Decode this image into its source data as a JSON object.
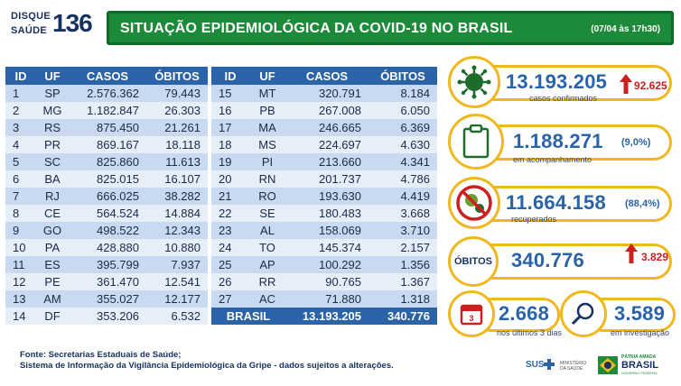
{
  "header": {
    "logo_line1": "DISQUE",
    "logo_line2": "SAÚDE",
    "logo_number": "136",
    "title": "SITUAÇÃO EPIDEMIOLÓGICA DA COVID-19 NO BRASIL",
    "date": "(07/04 às 17h30)"
  },
  "table": {
    "columns": [
      "ID",
      "UF",
      "CASOS",
      "ÓBITOS"
    ],
    "left_rows": [
      {
        "id": "1",
        "uf": "SP",
        "casos": "2.576.362",
        "obitos": "79.443"
      },
      {
        "id": "2",
        "uf": "MG",
        "casos": "1.182.847",
        "obitos": "26.303"
      },
      {
        "id": "3",
        "uf": "RS",
        "casos": "875.450",
        "obitos": "21.261"
      },
      {
        "id": "4",
        "uf": "PR",
        "casos": "869.167",
        "obitos": "18.118"
      },
      {
        "id": "5",
        "uf": "SC",
        "casos": "825.860",
        "obitos": "11.613"
      },
      {
        "id": "6",
        "uf": "BA",
        "casos": "825.015",
        "obitos": "16.107"
      },
      {
        "id": "7",
        "uf": "RJ",
        "casos": "666.025",
        "obitos": "38.282"
      },
      {
        "id": "8",
        "uf": "CE",
        "casos": "564.524",
        "obitos": "14.884"
      },
      {
        "id": "9",
        "uf": "GO",
        "casos": "498.522",
        "obitos": "12.343"
      },
      {
        "id": "10",
        "uf": "PA",
        "casos": "428.880",
        "obitos": "10.880"
      },
      {
        "id": "11",
        "uf": "ES",
        "casos": "395.799",
        "obitos": "7.937"
      },
      {
        "id": "12",
        "uf": "PE",
        "casos": "361.470",
        "obitos": "12.541"
      },
      {
        "id": "13",
        "uf": "AM",
        "casos": "355.027",
        "obitos": "12.177"
      },
      {
        "id": "14",
        "uf": "DF",
        "casos": "353.206",
        "obitos": "6.532"
      }
    ],
    "right_rows": [
      {
        "id": "15",
        "uf": "MT",
        "casos": "320.791",
        "obitos": "8.184"
      },
      {
        "id": "16",
        "uf": "PB",
        "casos": "267.008",
        "obitos": "6.050"
      },
      {
        "id": "17",
        "uf": "MA",
        "casos": "246.665",
        "obitos": "6.369"
      },
      {
        "id": "18",
        "uf": "MS",
        "casos": "224.697",
        "obitos": "4.630"
      },
      {
        "id": "19",
        "uf": "PI",
        "casos": "213.660",
        "obitos": "4.341"
      },
      {
        "id": "20",
        "uf": "RN",
        "casos": "201.737",
        "obitos": "4.786"
      },
      {
        "id": "21",
        "uf": "RO",
        "casos": "193.630",
        "obitos": "4.419"
      },
      {
        "id": "22",
        "uf": "SE",
        "casos": "180.483",
        "obitos": "3.668"
      },
      {
        "id": "23",
        "uf": "AL",
        "casos": "158.069",
        "obitos": "3.710"
      },
      {
        "id": "24",
        "uf": "TO",
        "casos": "145.374",
        "obitos": "2.157"
      },
      {
        "id": "25",
        "uf": "AP",
        "casos": "100.292",
        "obitos": "1.356"
      },
      {
        "id": "26",
        "uf": "RR",
        "casos": "90.765",
        "obitos": "1.367"
      },
      {
        "id": "27",
        "uf": "AC",
        "casos": "71.880",
        "obitos": "1.318"
      }
    ],
    "total": {
      "label": "BRASIL",
      "casos": "13.193.205",
      "obitos": "340.776"
    }
  },
  "cards": {
    "confirmed": {
      "value": "13.193.205",
      "delta": "92.625",
      "caption": "casos confirmados",
      "icon": "virus-icon"
    },
    "monitoring": {
      "value": "1.188.271",
      "pct": "(9,0%)",
      "caption": "em acompanhamento",
      "icon": "clipboard-icon"
    },
    "recovered": {
      "value": "11.664.158",
      "pct": "(88,4%)",
      "caption": "recuperados",
      "icon": "virus-blocked-icon"
    },
    "deaths": {
      "label": "ÓBITOS",
      "value": "340.776",
      "delta": "3.829"
    },
    "last3days": {
      "value": "2.668",
      "caption": "nos últimos 3 dias",
      "icon": "calendar-icon"
    },
    "investigation": {
      "value": "3.589",
      "caption": "em investigação",
      "icon": "magnifier-icon"
    }
  },
  "colors": {
    "accent_blue": "#2a63a8",
    "green": "#1d8a3a",
    "yellow": "#f0b81c",
    "red": "#cc1f1f"
  },
  "footer": {
    "line1": "Fonte: Secretarias Estaduais de Saúde;",
    "line2": "Sistema de Informação da Vigilância Epidemiológica da Gripe - dados sujeitos a alterações.",
    "logo_sus": "SUS",
    "logo_ministry": "MINISTÉRIO DA SAÚDE",
    "logo_patria": "PÁTRIA AMADA",
    "logo_brasil": "BRASIL",
    "logo_gov": "GOVERNO FEDERAL"
  }
}
